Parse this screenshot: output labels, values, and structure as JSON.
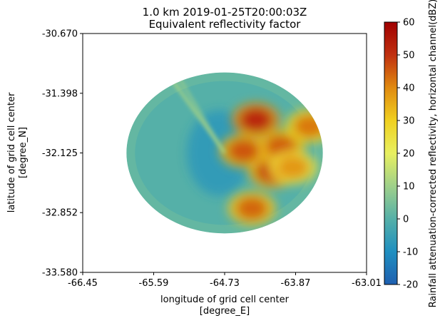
{
  "chart_data": {
    "type": "heatmap",
    "title": "1.0 km 2019-01-25T20:00:03Z",
    "subtitle": "Equivalent reflectivity factor",
    "xlabel": "longitude of grid cell center",
    "xlabel_unit": "[degree_E]",
    "ylabel": "latitude of grid cell center",
    "ylabel_unit": "[degree_N]",
    "xlim": [
      -66.45,
      -63.01
    ],
    "ylim": [
      -33.58,
      -30.67
    ],
    "x_ticks": [
      "-66.45",
      "-65.59",
      "-64.73",
      "-63.87",
      "-63.01"
    ],
    "y_ticks": [
      "-30.670",
      "-31.398",
      "-32.125",
      "-32.852",
      "-33.580"
    ],
    "colorbar": {
      "label": "Rainfall attenuation-corrected reflectivity, horizontal channel(dBZ)",
      "range": [
        -20,
        60
      ],
      "ticks": [
        "-20",
        "-10",
        "0",
        "10",
        "20",
        "30",
        "40",
        "50",
        "60"
      ],
      "colormap": [
        "#1f5fb0",
        "#1f8fc0",
        "#55b0a8",
        "#9fd08a",
        "#e8f060",
        "#f0d020",
        "#e08a10",
        "#c03010",
        "#a00000"
      ]
    },
    "radar_center": [
      -64.73,
      -32.125
    ],
    "radar_extent_deg": {
      "lon_radius": 1.19,
      "lat_radius": 0.98
    },
    "echo_regions": [
      {
        "lon": -64.15,
        "lat": -32.35,
        "dbz": 48
      },
      {
        "lon": -64.05,
        "lat": -32.05,
        "dbz": 45
      },
      {
        "lon": -64.35,
        "lat": -31.72,
        "dbz": 52
      },
      {
        "lon": -64.4,
        "lat": -32.8,
        "dbz": 44
      },
      {
        "lon": -63.7,
        "lat": -31.8,
        "dbz": 42
      },
      {
        "lon": -63.9,
        "lat": -32.3,
        "dbz": 38
      },
      {
        "lon": -64.5,
        "lat": -32.1,
        "dbz": 46
      }
    ]
  }
}
